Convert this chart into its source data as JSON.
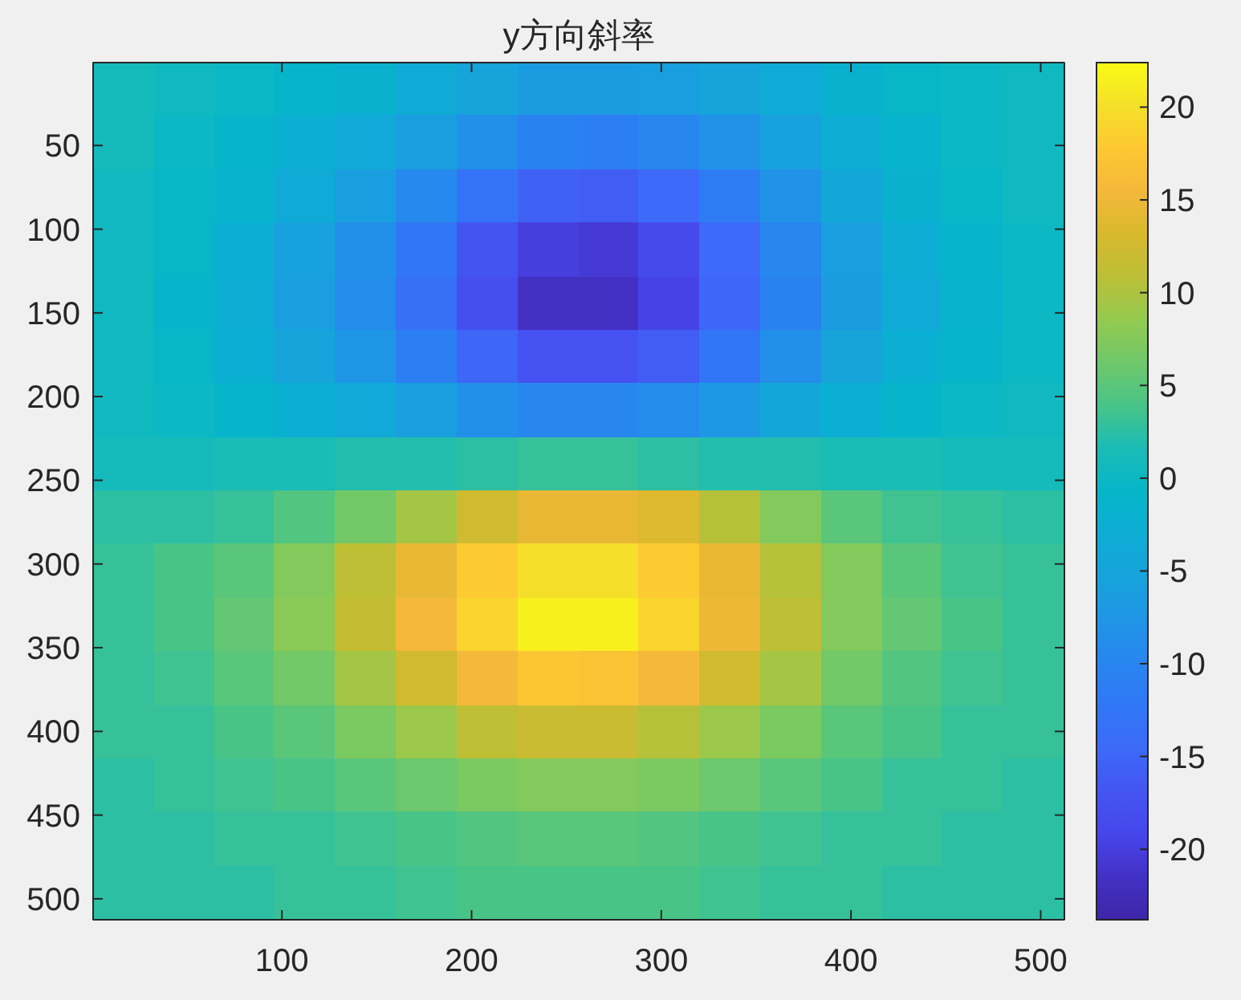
{
  "chart_data": {
    "type": "heatmap",
    "title": "y方向斜率",
    "cells": [
      [
        1,
        0.5,
        0,
        -1,
        -2,
        -3.5,
        -5,
        -6.5,
        -6.5,
        -6,
        -5,
        -3.5,
        -2,
        -0.5,
        0,
        0.5
      ],
      [
        1,
        0,
        -1,
        -2.5,
        -4,
        -6,
        -8.5,
        -10.5,
        -11,
        -10,
        -8,
        -5.5,
        -3,
        -1.5,
        0,
        0.5
      ],
      [
        0.5,
        -0.5,
        -1.5,
        -3.5,
        -6,
        -9.5,
        -13,
        -15.5,
        -16,
        -14.5,
        -11.5,
        -8,
        -4.5,
        -2,
        -0.5,
        0.5
      ],
      [
        0.5,
        -0.5,
        -2.5,
        -5.5,
        -8.5,
        -12.5,
        -17,
        -20,
        -20.5,
        -18.5,
        -14.5,
        -10,
        -6,
        -3,
        -1,
        0
      ],
      [
        0.5,
        -1,
        -3,
        -6,
        -9,
        -13.5,
        -18,
        -21.5,
        -21.5,
        -19.5,
        -15,
        -10.5,
        -6.5,
        -3.5,
        -1.5,
        0
      ],
      [
        0.5,
        -0.5,
        -2.5,
        -5,
        -7.5,
        -11,
        -15,
        -17.5,
        -17.5,
        -16,
        -12.5,
        -8.5,
        -5,
        -2.5,
        -1,
        0
      ],
      [
        0.5,
        0,
        -1,
        -2.5,
        -4,
        -6,
        -8.5,
        -10,
        -10,
        -9,
        -7,
        -4.5,
        -2.5,
        -1,
        0,
        0.5
      ],
      [
        1,
        1,
        1.5,
        1.5,
        2,
        2,
        2.5,
        3,
        3,
        2.5,
        2,
        2,
        1.5,
        1.5,
        1,
        1
      ],
      [
        2.5,
        2.5,
        3,
        4.5,
        6.5,
        9.5,
        12.5,
        14.5,
        14.5,
        13.5,
        10.5,
        7.5,
        5,
        3.5,
        3,
        2.5
      ],
      [
        3,
        4,
        5,
        7.5,
        11,
        14.5,
        18,
        20,
        20,
        18,
        14.5,
        10.5,
        7.5,
        5,
        3.5,
        3
      ],
      [
        3,
        4,
        5.5,
        8,
        11.5,
        15.5,
        19,
        21.5,
        21.5,
        19,
        15,
        11,
        7.5,
        5.5,
        4,
        3
      ],
      [
        3,
        3.5,
        5,
        6.5,
        9.5,
        12.5,
        15.5,
        17.5,
        17,
        15.5,
        12.5,
        9.5,
        6.5,
        4.5,
        3.5,
        3
      ],
      [
        3,
        3,
        4,
        5,
        7,
        9,
        11,
        12,
        12,
        10.5,
        9,
        7,
        5,
        4,
        3,
        3
      ],
      [
        2.5,
        3,
        3.5,
        4,
        5,
        6,
        7,
        7.5,
        7.5,
        7,
        6,
        5,
        4,
        3,
        3,
        2.5
      ],
      [
        2.5,
        2.5,
        3,
        3,
        3.5,
        4,
        4.5,
        5,
        5,
        4.5,
        4,
        3.5,
        3,
        3,
        2.5,
        2.5
      ],
      [
        2.5,
        2.5,
        2.5,
        3,
        3,
        3.5,
        4,
        4,
        4,
        4,
        3.5,
        3,
        3,
        2.5,
        2.5,
        2.5
      ]
    ],
    "xlim": [
      0.5,
      512.5
    ],
    "xticks": [
      100,
      200,
      300,
      400,
      500
    ],
    "ylim": [
      512.5,
      0.5
    ],
    "yticks": [
      50,
      100,
      150,
      200,
      250,
      300,
      350,
      400,
      450,
      500
    ],
    "clim": [
      -23.8,
      22.4
    ],
    "cticks": [
      -20,
      -15,
      -10,
      -5,
      0,
      5,
      10,
      15,
      20
    ]
  }
}
